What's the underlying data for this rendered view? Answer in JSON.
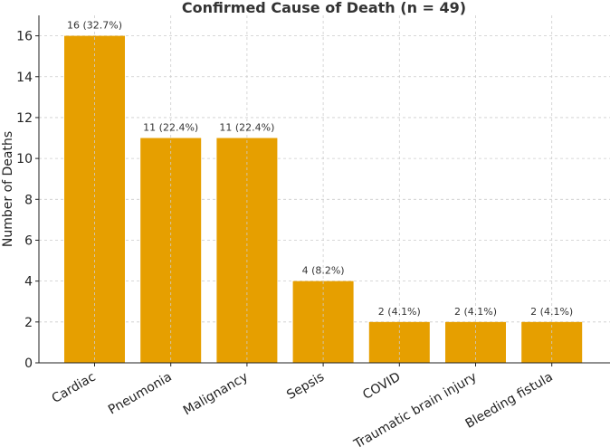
{
  "chart_data": {
    "type": "bar",
    "title": "Confirmed Cause of Death (n = 49)",
    "xlabel": "",
    "ylabel": "Number of Deaths",
    "categories": [
      "Cardiac",
      "Pneumonia",
      "Malignancy",
      "Sepsis",
      "COVID",
      "Traumatic brain injury",
      "Bleeding fistula"
    ],
    "values": [
      16,
      11,
      11,
      4,
      2,
      2,
      2
    ],
    "data_labels": [
      "16 (32.7%)",
      "11 (22.4%)",
      "11 (22.4%)",
      "4 (8.2%)",
      "2 (4.1%)",
      "2 (4.1%)",
      "2 (4.1%)"
    ],
    "yticks": [
      "0",
      "2",
      "4",
      "6",
      "8",
      "10",
      "12",
      "14",
      "16"
    ],
    "ylim": [
      0,
      17
    ],
    "grid": true,
    "bar_color": "#E69F00"
  }
}
